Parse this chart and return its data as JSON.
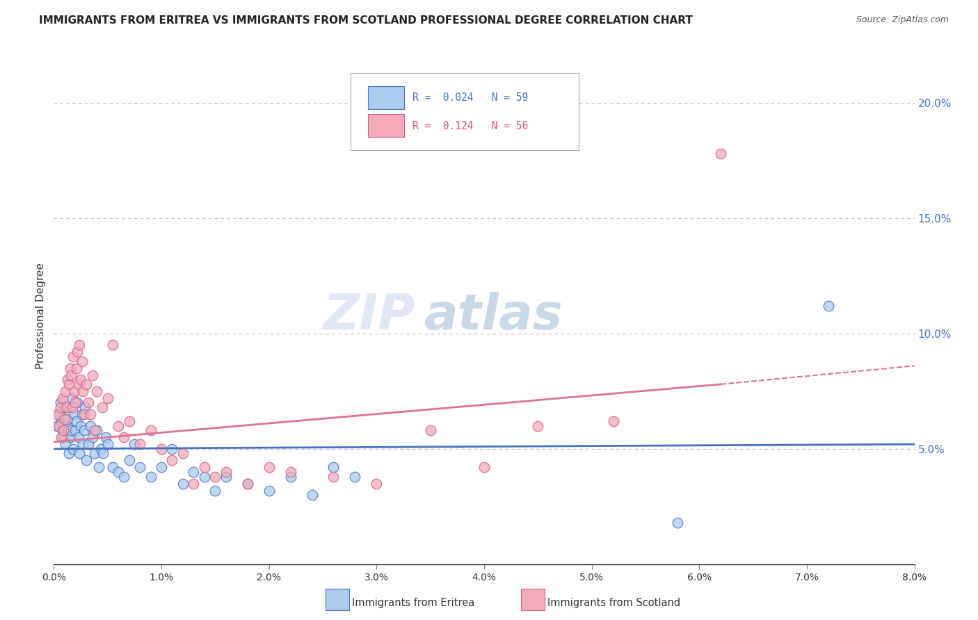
{
  "title": "IMMIGRANTS FROM ERITREA VS IMMIGRANTS FROM SCOTLAND PROFESSIONAL DEGREE CORRELATION CHART",
  "source": "Source: ZipAtlas.com",
  "ylabel": "Professional Degree",
  "right_ytick_vals": [
    0.2,
    0.15,
    0.1,
    0.05
  ],
  "xmin": 0.0,
  "xmax": 0.08,
  "ymin": 0.0,
  "ymax": 0.215,
  "color_eritrea": "#AACCEE",
  "color_scotland": "#F4AABB",
  "line_color_eritrea": "#4472C4",
  "line_color_scotland": "#E07090",
  "watermark": "ZIPatlas",
  "eritrea_scatter_x": [
    0.0003,
    0.0005,
    0.0006,
    0.0007,
    0.0008,
    0.0009,
    0.001,
    0.0011,
    0.0012,
    0.0013,
    0.0014,
    0.0015,
    0.0016,
    0.0017,
    0.0018,
    0.0019,
    0.002,
    0.0021,
    0.0022,
    0.0023,
    0.0024,
    0.0025,
    0.0026,
    0.0027,
    0.0028,
    0.0029,
    0.003,
    0.0032,
    0.0034,
    0.0036,
    0.0038,
    0.004,
    0.0042,
    0.0044,
    0.0046,
    0.0048,
    0.005,
    0.0055,
    0.006,
    0.0065,
    0.007,
    0.0075,
    0.008,
    0.009,
    0.01,
    0.011,
    0.012,
    0.013,
    0.014,
    0.015,
    0.016,
    0.018,
    0.02,
    0.022,
    0.024,
    0.026,
    0.028,
    0.058,
    0.072
  ],
  "eritrea_scatter_y": [
    0.06,
    0.065,
    0.07,
    0.062,
    0.058,
    0.055,
    0.068,
    0.052,
    0.06,
    0.063,
    0.048,
    0.055,
    0.058,
    0.072,
    0.05,
    0.065,
    0.058,
    0.062,
    0.07,
    0.055,
    0.048,
    0.06,
    0.065,
    0.052,
    0.058,
    0.068,
    0.045,
    0.052,
    0.06,
    0.055,
    0.048,
    0.058,
    0.042,
    0.05,
    0.048,
    0.055,
    0.052,
    0.042,
    0.04,
    0.038,
    0.045,
    0.052,
    0.042,
    0.038,
    0.042,
    0.05,
    0.035,
    0.04,
    0.038,
    0.032,
    0.038,
    0.035,
    0.032,
    0.038,
    0.03,
    0.042,
    0.038,
    0.018,
    0.112
  ],
  "scotland_scatter_x": [
    0.0003,
    0.0005,
    0.0006,
    0.0007,
    0.0008,
    0.0009,
    0.001,
    0.0011,
    0.0012,
    0.0013,
    0.0014,
    0.0015,
    0.0016,
    0.0017,
    0.0018,
    0.0019,
    0.002,
    0.0021,
    0.0022,
    0.0023,
    0.0024,
    0.0025,
    0.0026,
    0.0027,
    0.0028,
    0.003,
    0.0032,
    0.0034,
    0.0036,
    0.0038,
    0.004,
    0.0045,
    0.005,
    0.0055,
    0.006,
    0.0065,
    0.007,
    0.008,
    0.009,
    0.01,
    0.011,
    0.012,
    0.013,
    0.014,
    0.015,
    0.016,
    0.018,
    0.02,
    0.022,
    0.026,
    0.03,
    0.035,
    0.04,
    0.045,
    0.052,
    0.062
  ],
  "scotland_scatter_y": [
    0.065,
    0.06,
    0.068,
    0.055,
    0.072,
    0.058,
    0.063,
    0.075,
    0.068,
    0.08,
    0.078,
    0.085,
    0.082,
    0.068,
    0.09,
    0.075,
    0.07,
    0.085,
    0.092,
    0.078,
    0.095,
    0.08,
    0.088,
    0.075,
    0.065,
    0.078,
    0.07,
    0.065,
    0.082,
    0.058,
    0.075,
    0.068,
    0.072,
    0.095,
    0.06,
    0.055,
    0.062,
    0.052,
    0.058,
    0.05,
    0.045,
    0.048,
    0.035,
    0.042,
    0.038,
    0.04,
    0.035,
    0.042,
    0.04,
    0.038,
    0.035,
    0.058,
    0.042,
    0.06,
    0.062,
    0.178
  ]
}
